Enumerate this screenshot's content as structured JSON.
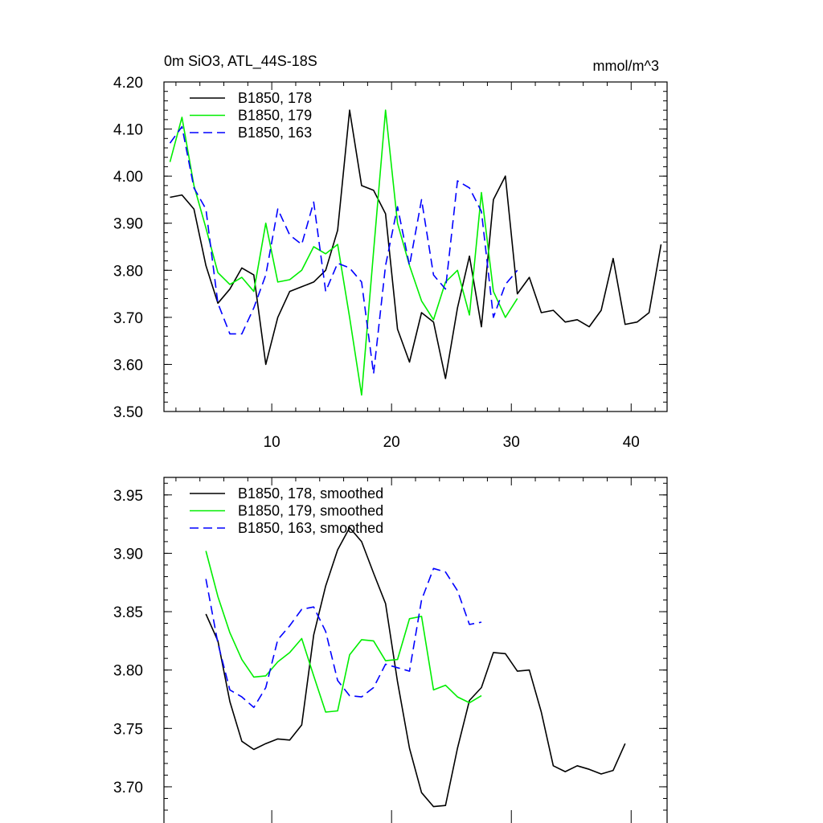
{
  "chart_data": [
    {
      "type": "line",
      "title_left": "0m SiO3, ATL_44S-18S",
      "title_right": "mmol/m^3",
      "xlabel": "",
      "ylabel": "",
      "xlim": [
        1,
        43
      ],
      "ylim": [
        3.5,
        4.2
      ],
      "xticks": [
        10,
        20,
        30,
        40
      ],
      "xtick_labels": [
        "10",
        "20",
        "30",
        "40"
      ],
      "yticks": [
        3.5,
        3.6,
        3.7,
        3.8,
        3.9,
        4.0,
        4.1,
        4.2
      ],
      "ytick_labels": [
        "3.50",
        "3.60",
        "3.70",
        "3.80",
        "3.90",
        "4.00",
        "4.10",
        "4.20"
      ],
      "legend_position": "top-left",
      "series": [
        {
          "name": "B1850, 178",
          "color": "#000000",
          "dash": "solid",
          "x": [
            1.5,
            2.5,
            3.5,
            4.5,
            5.5,
            6.5,
            7.5,
            8.5,
            9.5,
            10.5,
            11.5,
            12.5,
            13.5,
            14.5,
            15.5,
            16.5,
            17.5,
            18.5,
            19.5,
            20.5,
            21.5,
            22.5,
            23.5,
            24.5,
            25.5,
            26.5,
            27.5,
            28.5,
            29.5,
            30.5,
            31.5,
            32.5,
            33.5,
            34.5,
            35.5,
            36.5,
            37.5,
            38.5,
            39.5,
            40.5,
            41.5,
            42.5
          ],
          "values": [
            3.955,
            3.96,
            3.93,
            3.81,
            3.73,
            3.76,
            3.805,
            3.79,
            3.6,
            3.7,
            3.755,
            3.765,
            3.775,
            3.8,
            3.885,
            4.14,
            3.98,
            3.97,
            3.92,
            3.675,
            3.605,
            3.71,
            3.69,
            3.57,
            3.72,
            3.83,
            3.68,
            3.95,
            4.0,
            3.75,
            3.785,
            3.71,
            3.715,
            3.69,
            3.695,
            3.68,
            3.715,
            3.825,
            3.685,
            3.69,
            3.71,
            3.855
          ]
        },
        {
          "name": "B1850, 179",
          "color": "#00ee00",
          "dash": "solid",
          "x": [
            1.5,
            2.5,
            3.5,
            4.5,
            5.5,
            6.5,
            7.5,
            8.5,
            9.5,
            10.5,
            11.5,
            12.5,
            13.5,
            14.5,
            15.5,
            16.5,
            17.5,
            18.5,
            19.5,
            20.5,
            21.5,
            22.5,
            23.5,
            24.5,
            25.5,
            26.5,
            27.5,
            28.5,
            29.5,
            30.5
          ],
          "values": [
            4.03,
            4.125,
            3.98,
            3.89,
            3.795,
            3.77,
            3.785,
            3.755,
            3.9,
            3.775,
            3.78,
            3.8,
            3.85,
            3.835,
            3.855,
            3.7,
            3.535,
            3.84,
            4.14,
            3.9,
            3.81,
            3.735,
            3.695,
            3.775,
            3.8,
            3.705,
            3.965,
            3.755,
            3.7,
            3.74
          ]
        },
        {
          "name": "B1850, 163",
          "color": "#0000ff",
          "dash": "dashed",
          "x": [
            1.5,
            2.5,
            3.5,
            4.5,
            5.5,
            6.5,
            7.5,
            8.5,
            9.5,
            10.5,
            11.5,
            12.5,
            13.5,
            14.5,
            15.5,
            16.5,
            17.5,
            18.5,
            19.5,
            20.5,
            21.5,
            22.5,
            23.5,
            24.5,
            25.5,
            26.5,
            27.5,
            28.5,
            29.5,
            30.5
          ],
          "values": [
            4.07,
            4.105,
            3.975,
            3.93,
            3.73,
            3.665,
            3.665,
            3.72,
            3.79,
            3.93,
            3.875,
            3.855,
            3.945,
            3.755,
            3.815,
            3.805,
            3.775,
            3.58,
            3.81,
            3.935,
            3.81,
            3.95,
            3.79,
            3.76,
            3.99,
            3.975,
            3.925,
            3.7,
            3.77,
            3.8
          ]
        }
      ]
    },
    {
      "type": "line",
      "xlabel": "",
      "ylabel": "",
      "xlim": [
        1,
        43
      ],
      "ylim": [
        3.68,
        3.965
      ],
      "xticks": [
        10,
        20,
        30,
        40
      ],
      "yticks": [
        3.7,
        3.75,
        3.8,
        3.85,
        3.9,
        3.95
      ],
      "ytick_labels": [
        "3.70",
        "3.75",
        "3.80",
        "3.85",
        "3.90",
        "3.95"
      ],
      "legend_position": "top-left",
      "series": [
        {
          "name": "B1850, 178, smoothed",
          "color": "#000000",
          "dash": "solid",
          "x": [
            4.5,
            5.5,
            6.5,
            7.5,
            8.5,
            9.5,
            10.5,
            11.5,
            12.5,
            13.5,
            14.5,
            15.5,
            16.5,
            17.5,
            18.5,
            19.5,
            20.5,
            21.5,
            22.5,
            23.5,
            24.5,
            25.5,
            26.5,
            27.5,
            28.5,
            29.5,
            30.5,
            31.5,
            32.5,
            33.5,
            34.5,
            35.5,
            36.5,
            37.5,
            38.5,
            39.5
          ],
          "values": [
            3.848,
            3.825,
            3.773,
            3.739,
            3.732,
            3.737,
            3.741,
            3.74,
            3.753,
            3.83,
            3.872,
            3.903,
            3.922,
            3.91,
            3.883,
            3.857,
            3.79,
            3.733,
            3.695,
            3.683,
            3.684,
            3.733,
            3.774,
            3.785,
            3.815,
            3.814,
            3.799,
            3.8,
            3.764,
            3.718,
            3.713,
            3.718,
            3.715,
            3.711,
            3.714,
            3.737
          ]
        },
        {
          "name": "B1850, 179, smoothed",
          "color": "#00ee00",
          "dash": "solid",
          "x": [
            4.5,
            5.5,
            6.5,
            7.5,
            8.5,
            9.5,
            10.5,
            11.5,
            12.5,
            13.5,
            14.5,
            15.5,
            16.5,
            17.5,
            18.5,
            19.5,
            20.5,
            21.5,
            22.5,
            23.5,
            24.5,
            25.5,
            26.5,
            27.5
          ],
          "values": [
            3.902,
            3.863,
            3.832,
            3.809,
            3.794,
            3.795,
            3.807,
            3.815,
            3.827,
            3.795,
            3.764,
            3.765,
            3.813,
            3.826,
            3.825,
            3.808,
            3.809,
            3.844,
            3.846,
            3.783,
            3.787,
            3.777,
            3.772,
            3.778
          ]
        },
        {
          "name": "B1850, 163, smoothed",
          "color": "#0000ff",
          "dash": "dashed",
          "x": [
            4.5,
            5.5,
            6.5,
            7.5,
            8.5,
            9.5,
            10.5,
            11.5,
            12.5,
            13.5,
            14.5,
            15.5,
            16.5,
            17.5,
            18.5,
            19.5,
            20.5,
            21.5,
            22.5,
            23.5,
            24.5,
            25.5,
            26.5,
            27.5
          ],
          "values": [
            3.878,
            3.823,
            3.783,
            3.777,
            3.768,
            3.785,
            3.826,
            3.838,
            3.852,
            3.854,
            3.833,
            3.791,
            3.778,
            3.777,
            3.785,
            3.805,
            3.802,
            3.799,
            3.86,
            3.887,
            3.884,
            3.868,
            3.839,
            3.841
          ]
        }
      ]
    }
  ]
}
